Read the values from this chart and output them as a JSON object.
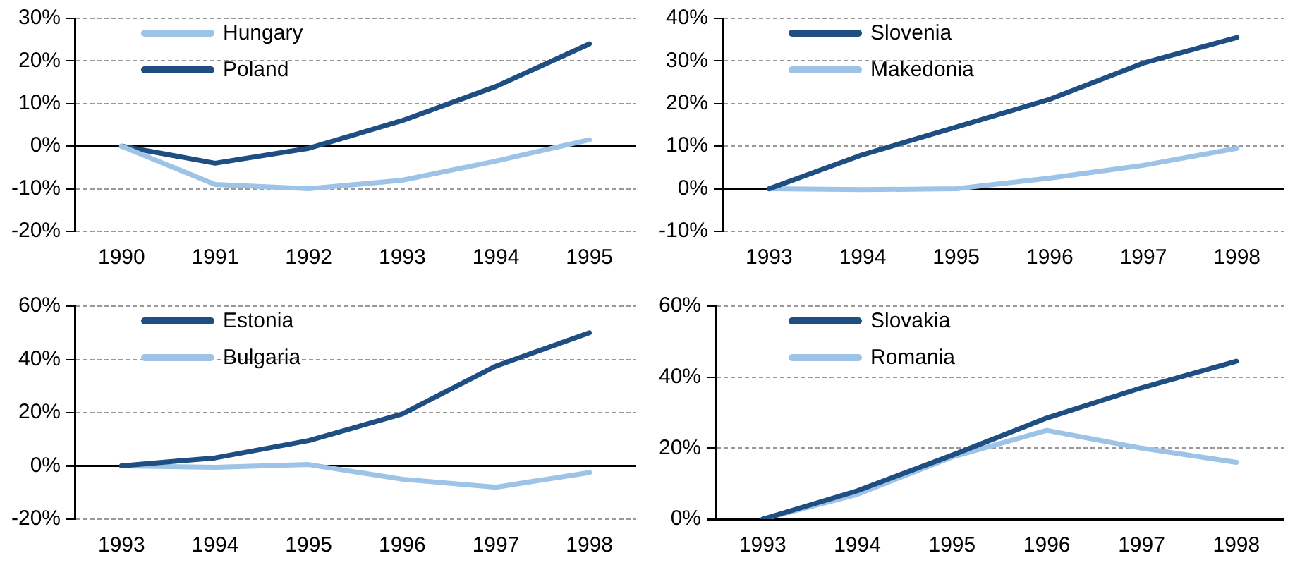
{
  "chart_data": [
    {
      "type": "line",
      "categories": [
        "1990",
        "1991",
        "1992",
        "1993",
        "1994",
        "1995"
      ],
      "ylim": [
        -20,
        30
      ],
      "yticks": [
        {
          "value": -20,
          "label": "-20%"
        },
        {
          "value": -10,
          "label": "-10%"
        },
        {
          "value": 0,
          "label": "0%"
        },
        {
          "value": 10,
          "label": "10%"
        },
        {
          "value": 20,
          "label": "20%"
        },
        {
          "value": 30,
          "label": "30%"
        }
      ],
      "grid": "y",
      "legend": "top left",
      "marker": "none",
      "line_style": "solid",
      "series": [
        {
          "name": "Hungary",
          "color": "#9dc3e6",
          "values": [
            0,
            -9,
            -10,
            -8,
            -3.5,
            1.5
          ]
        },
        {
          "name": "Poland",
          "color": "#1f4e82",
          "values": [
            0,
            -4,
            -0.5,
            6,
            14,
            24
          ]
        }
      ]
    },
    {
      "type": "line",
      "categories": [
        "1993",
        "1994",
        "1995",
        "1996",
        "1997",
        "1998"
      ],
      "ylim": [
        -10,
        40
      ],
      "yticks": [
        {
          "value": -10,
          "label": "-10%"
        },
        {
          "value": 0,
          "label": "0%"
        },
        {
          "value": 10,
          "label": "10%"
        },
        {
          "value": 20,
          "label": "20%"
        },
        {
          "value": 30,
          "label": "30%"
        },
        {
          "value": 40,
          "label": "40%"
        }
      ],
      "grid": "y",
      "legend": "top left",
      "marker": "none",
      "line_style": "solid",
      "series": [
        {
          "name": "Slovenia",
          "color": "#1f4e82",
          "values": [
            0,
            8,
            14.5,
            21,
            29.5,
            35.5
          ]
        },
        {
          "name": "Makedonia",
          "color": "#9dc3e6",
          "values": [
            0,
            -0.2,
            0,
            2.5,
            5.5,
            9.5
          ]
        }
      ]
    },
    {
      "type": "line",
      "categories": [
        "1993",
        "1994",
        "1995",
        "1996",
        "1997",
        "1998"
      ],
      "ylim": [
        -20,
        60
      ],
      "yticks": [
        {
          "value": -20,
          "label": "-20%"
        },
        {
          "value": 0,
          "label": "0%"
        },
        {
          "value": 20,
          "label": "20%"
        },
        {
          "value": 40,
          "label": "40%"
        },
        {
          "value": 60,
          "label": "60%"
        }
      ],
      "grid": "y",
      "legend": "top left",
      "marker": "none",
      "line_style": "solid",
      "series": [
        {
          "name": "Estonia",
          "color": "#1f4e82",
          "values": [
            0,
            3,
            9.5,
            19.5,
            37.5,
            50
          ]
        },
        {
          "name": "Bulgaria",
          "color": "#9dc3e6",
          "values": [
            0,
            -0.5,
            0.5,
            -5,
            -8,
            -2.5
          ]
        }
      ]
    },
    {
      "type": "line",
      "categories": [
        "1993",
        "1994",
        "1995",
        "1996",
        "1997",
        "1998"
      ],
      "ylim": [
        0,
        60
      ],
      "yticks": [
        {
          "value": 0,
          "label": "0%"
        },
        {
          "value": 20,
          "label": "20%"
        },
        {
          "value": 40,
          "label": "40%"
        },
        {
          "value": 60,
          "label": "60%"
        }
      ],
      "grid": "y",
      "legend": "top left",
      "marker": "none",
      "line_style": "solid",
      "series": [
        {
          "name": "Slovakia",
          "color": "#1f4e82",
          "values": [
            0,
            8,
            18,
            28.5,
            37,
            44.5
          ]
        },
        {
          "name": "Romania",
          "color": "#9dc3e6",
          "values": [
            0,
            7,
            17.5,
            25,
            20,
            16
          ]
        }
      ]
    }
  ]
}
